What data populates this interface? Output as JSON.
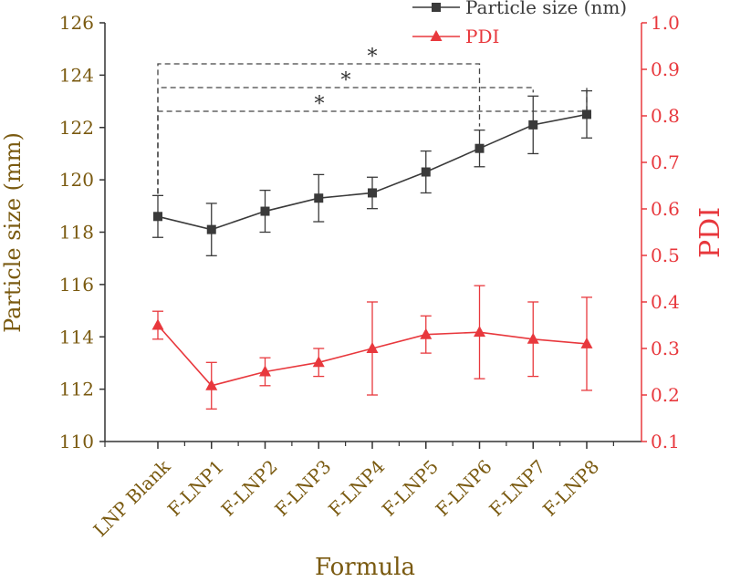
{
  "chart_data": {
    "type": "line",
    "xlabel": "Formula",
    "ylabel_left": "Particle size (mm)",
    "ylabel_right": "PDI",
    "categories": [
      "LNP Blank",
      "F-LNP1",
      "F-LNP2",
      "F-LNP3",
      "F-LNP4",
      "F-LNP5",
      "F-LNP6",
      "F-LNP7",
      "F-LNP8"
    ],
    "y_left": {
      "min": 110,
      "max": 126,
      "ticks": [
        "110",
        "112",
        "114",
        "116",
        "118",
        "120",
        "122",
        "124",
        "126"
      ]
    },
    "y_right": {
      "min": 0.1,
      "max": 1.0,
      "ticks": [
        "0.1",
        "0.2",
        "0.3",
        "0.4",
        "0.5",
        "0.6",
        "0.7",
        "0.8",
        "0.9",
        "1.0"
      ]
    },
    "series": [
      {
        "name": "Particle size (nm)",
        "axis": "left",
        "marker": "square",
        "color": "#3a3a3a",
        "values": [
          118.6,
          118.1,
          118.8,
          119.3,
          119.5,
          120.3,
          121.2,
          122.1,
          122.5
        ],
        "errors": [
          0.8,
          1.0,
          0.8,
          0.9,
          0.6,
          0.8,
          0.7,
          1.1,
          0.9
        ]
      },
      {
        "name": "PDI",
        "axis": "right",
        "marker": "triangle",
        "color": "#e8383d",
        "values": [
          0.35,
          0.22,
          0.25,
          0.27,
          0.3,
          0.33,
          0.335,
          0.32,
          0.31
        ],
        "errors": [
          0.03,
          0.05,
          0.03,
          0.03,
          0.1,
          0.04,
          0.1,
          0.08,
          0.1
        ]
      }
    ],
    "significance": [
      {
        "from": "LNP Blank",
        "to": "F-LNP6",
        "label": "*"
      },
      {
        "from": "LNP Blank",
        "to": "F-LNP7",
        "label": "*"
      },
      {
        "from": "LNP Blank",
        "to": "F-LNP8",
        "label": "*"
      }
    ],
    "legend": "top-right",
    "colors": {
      "left_axis_text": "#7a5a10",
      "axis_line": "#333333",
      "right_axis": "#e8383d"
    }
  }
}
